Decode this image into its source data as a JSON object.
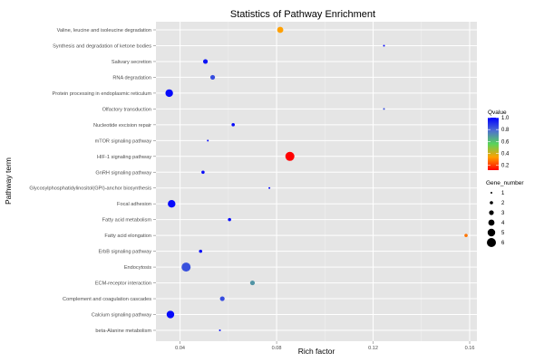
{
  "chart_data": {
    "type": "scatter",
    "title": "Statistics of Pathway Enrichment",
    "xlabel": "Rich factor",
    "ylabel": "Pathway term",
    "xlim": [
      0.03,
      0.163
    ],
    "x_ticks": [
      "0.04",
      "0.08",
      "0.12",
      "0.16"
    ],
    "x_tick_values": [
      0.04,
      0.08,
      0.12,
      0.16
    ],
    "grid": true,
    "categories": [
      "Valine, leucine and isoleucine degradation",
      "Synthesis and degradation of ketone bodies",
      "Salivary secretion",
      "RNA degradation",
      "Protein processing in endoplasmic reticulum",
      "Olfactory transduction",
      "Nucleotide excision repair",
      "mTOR signaling pathway",
      "HIF-1 signaling pathway",
      "GnRH signaling pathway",
      "Glycosylphosphatidylinositol(GPI)-anchor biosynthesis",
      "Focal adhesion",
      "Fatty acid metabolism",
      "Fatty acid elongation",
      "ErbB signaling pathway",
      "Endocytosis",
      "ECM-receptor interaction",
      "Complement and coagulation cascades",
      "Calcium signaling pathway",
      "beta-Alanine metabolism"
    ],
    "points": [
      {
        "term": "Valine, leucine and isoleucine degradation",
        "x": 0.0815,
        "gene_number": 4,
        "qvalue": 0.34
      },
      {
        "term": "Synthesis and degradation of ketone bodies",
        "x": 0.1245,
        "gene_number": 1,
        "qvalue": 0.98
      },
      {
        "term": "Salivary secretion",
        "x": 0.0505,
        "gene_number": 3,
        "qvalue": 0.96
      },
      {
        "term": "RNA degradation",
        "x": 0.0535,
        "gene_number": 3,
        "qvalue": 0.85
      },
      {
        "term": "Protein processing in endoplasmic reticulum",
        "x": 0.0355,
        "gene_number": 5,
        "qvalue": 0.98
      },
      {
        "term": "Olfactory transduction",
        "x": 0.1245,
        "gene_number": 1,
        "qvalue": 0.84
      },
      {
        "term": "Nucleotide excision repair",
        "x": 0.062,
        "gene_number": 2,
        "qvalue": 0.98
      },
      {
        "term": "mTOR signaling pathway",
        "x": 0.0515,
        "gene_number": 1,
        "qvalue": 0.97
      },
      {
        "term": "HIF-1 signaling pathway",
        "x": 0.0855,
        "gene_number": 6,
        "qvalue": 0.12
      },
      {
        "term": "GnRH signaling pathway",
        "x": 0.0495,
        "gene_number": 2,
        "qvalue": 0.97
      },
      {
        "term": "Glycosylphosphatidylinositol(GPI)-anchor biosynthesis",
        "x": 0.077,
        "gene_number": 1,
        "qvalue": 0.97
      },
      {
        "term": "Focal adhesion",
        "x": 0.0365,
        "gene_number": 5,
        "qvalue": 0.98
      },
      {
        "term": "Fatty acid metabolism",
        "x": 0.0605,
        "gene_number": 2,
        "qvalue": 0.97
      },
      {
        "term": "Fatty acid elongation",
        "x": 0.1585,
        "gene_number": 2,
        "qvalue": 0.28
      },
      {
        "term": "ErbB signaling pathway",
        "x": 0.0485,
        "gene_number": 2,
        "qvalue": 0.97
      },
      {
        "term": "Endocytosis",
        "x": 0.0425,
        "gene_number": 6,
        "qvalue": 0.84
      },
      {
        "term": "ECM-receptor interaction",
        "x": 0.07,
        "gene_number": 3,
        "qvalue": 0.7
      },
      {
        "term": "Complement and coagulation cascades",
        "x": 0.0575,
        "gene_number": 3,
        "qvalue": 0.85
      },
      {
        "term": "Calcium signaling pathway",
        "x": 0.036,
        "gene_number": 5,
        "qvalue": 0.98
      },
      {
        "term": "beta-Alanine metabolism",
        "x": 0.0565,
        "gene_number": 1,
        "qvalue": 0.96
      }
    ],
    "color_legend": {
      "title": "Qvalue",
      "ticks": [
        "1.0",
        "0.8",
        "0.6",
        "0.4",
        "0.2"
      ],
      "tick_values": [
        1.0,
        0.8,
        0.6,
        0.4,
        0.2
      ],
      "range": [
        0.12,
        1.0
      ],
      "gradient": [
        "#0000ff",
        "#4f6fd0",
        "#58d45a",
        "#ffa000",
        "#ff0000"
      ]
    },
    "size_legend": {
      "title": "Gene_number",
      "values": [
        1,
        2,
        3,
        4,
        5,
        6
      ],
      "labels": [
        "1",
        "2",
        "3",
        "4",
        "5",
        "6"
      ]
    },
    "colors": {
      "panel": "#e5e5e5",
      "grid_major": "#ffffff",
      "grid_minor": "#f2f2f2"
    }
  }
}
